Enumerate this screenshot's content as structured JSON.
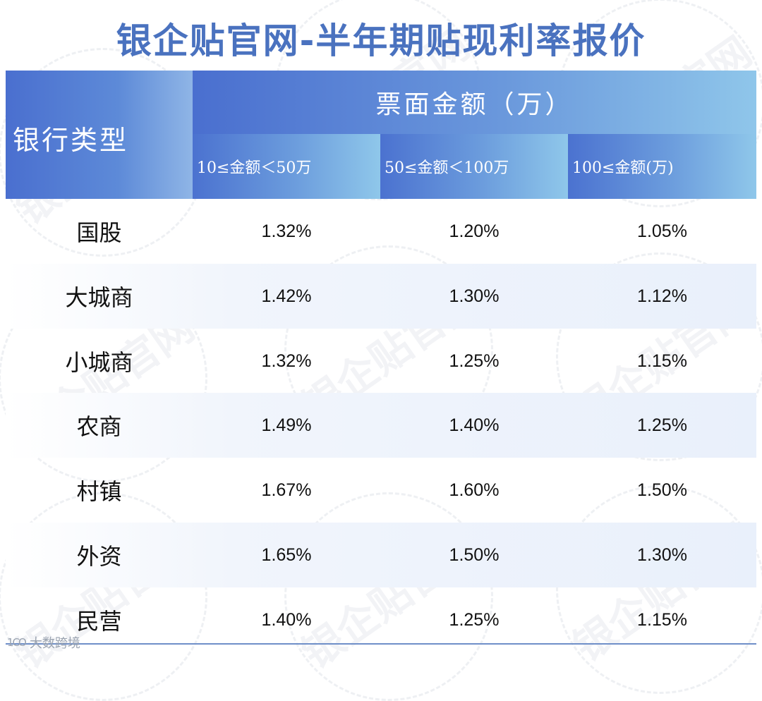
{
  "title": "银企贴官网-半年期贴现利率报价",
  "header": {
    "type_label": "银行类型",
    "group_label": "票面金额（万）",
    "columns": [
      "10≤金额＜50万",
      "50≤金额＜100万",
      "100≤金额(万)"
    ]
  },
  "rows": [
    {
      "type": "国股",
      "values": [
        "1.32%",
        "1.20%",
        "1.05%"
      ]
    },
    {
      "type": "大城商",
      "values": [
        "1.42%",
        "1.30%",
        "1.12%"
      ]
    },
    {
      "type": "小城商",
      "values": [
        "1.32%",
        "1.25%",
        "1.15%"
      ]
    },
    {
      "type": "农商",
      "values": [
        "1.49%",
        "1.40%",
        "1.25%"
      ]
    },
    {
      "type": "村镇",
      "values": [
        "1.67%",
        "1.60%",
        "1.50%"
      ]
    },
    {
      "type": "外资",
      "values": [
        "1.65%",
        "1.50%",
        "1.30%"
      ]
    },
    {
      "type": "民营",
      "values": [
        "1.40%",
        "1.25%",
        "1.15%"
      ]
    }
  ],
  "watermark": "银企贴官网",
  "footer_logo": {
    "mark": "1CO",
    "text": "大数跨境"
  },
  "colors": {
    "title": "#4a72bf",
    "header_start": "#4a6fcf",
    "header_end": "#8fc6ea"
  }
}
